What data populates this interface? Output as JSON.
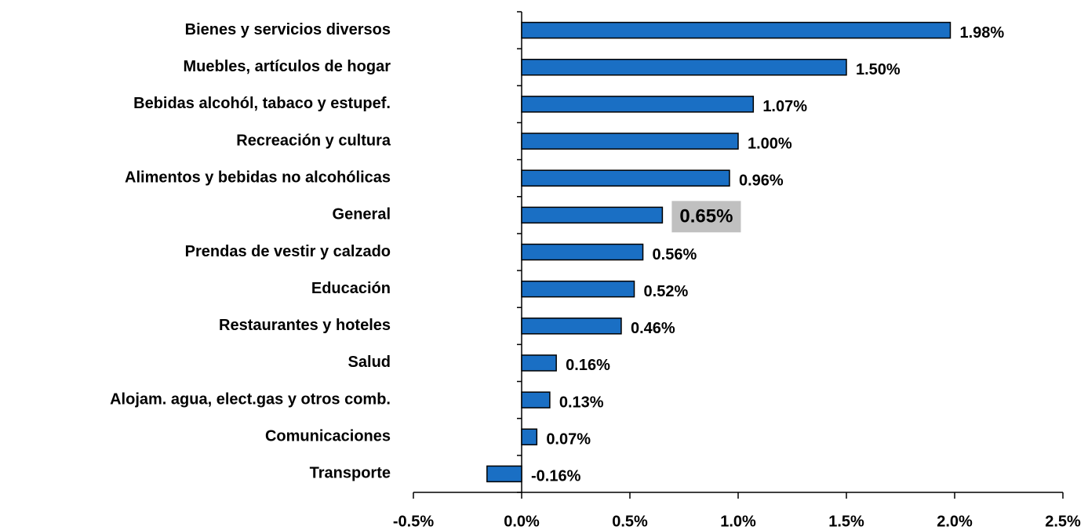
{
  "chart_data": {
    "type": "barh",
    "categories": [
      "Bienes y servicios diversos",
      "Muebles, artículos de hogar",
      "Bebidas alcohól, tabaco y estupef.",
      "Recreación y cultura",
      "Alimentos y bebidas no alcohólicas",
      "General",
      "Prendas de vestir y calzado",
      "Educación",
      "Restaurantes y hoteles",
      "Salud",
      "Alojam. agua, elect.gas y otros comb.",
      "Comunicaciones",
      "Transporte"
    ],
    "values": [
      1.98,
      1.5,
      1.07,
      1.0,
      0.96,
      0.65,
      0.56,
      0.52,
      0.46,
      0.16,
      0.13,
      0.07,
      -0.16
    ],
    "value_labels": [
      "1.98%",
      "1.50%",
      "1.07%",
      "1.00%",
      "0.96%",
      "0.65%",
      "0.56%",
      "0.52%",
      "0.46%",
      "0.16%",
      "0.13%",
      "0.07%",
      "-0.16%"
    ],
    "color": "#1a6fc4",
    "highlight": 5,
    "xlim": [
      -0.5,
      2.5
    ],
    "xticks": [
      {
        "value": -0.5,
        "label": "-0.5%"
      },
      {
        "value": 0,
        "label": "0.0%"
      },
      {
        "value": 0.5,
        "label": "0.5%"
      },
      {
        "value": 1,
        "label": "1.0%"
      },
      {
        "value": 1.5,
        "label": "1.5%"
      },
      {
        "value": 2,
        "label": "2.0%"
      },
      {
        "value": 2.5,
        "label": "2.5%"
      }
    ],
    "grid": false
  }
}
